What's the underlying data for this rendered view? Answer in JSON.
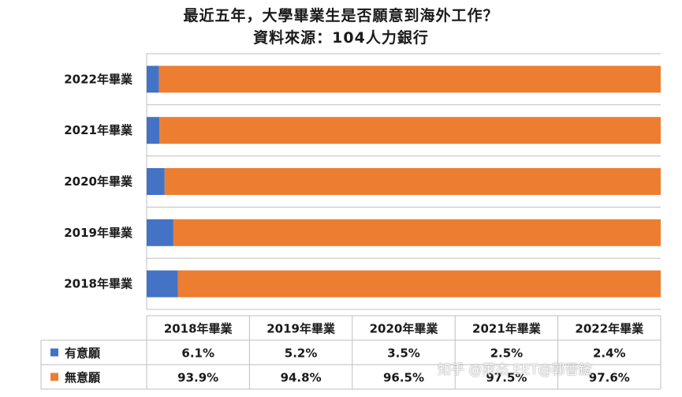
{
  "chart_data": {
    "type": "bar",
    "orientation": "horizontal",
    "stacked": true,
    "title": "最近五年，大學畢業生是否願意到海外工作？",
    "subtitle": "資料來源：104人力銀行",
    "categories": [
      "2018年畢業",
      "2019年畢業",
      "2020年畢業",
      "2021年畢業",
      "2022年畢業"
    ],
    "series": [
      {
        "name": "有意願",
        "values": [
          6.1,
          5.2,
          3.5,
          2.5,
          2.4
        ],
        "labels": [
          "6.1%",
          "5.2%",
          "3.5%",
          "2.5%",
          "2.4%"
        ],
        "color": "#4472C4"
      },
      {
        "name": "無意願",
        "values": [
          93.9,
          94.8,
          96.5,
          97.5,
          97.6
        ],
        "labels": [
          "93.9%",
          "94.8%",
          "96.5%",
          "97.5%",
          "97.6%"
        ],
        "color": "#ED7D31"
      }
    ],
    "xlim": [
      0,
      100
    ],
    "grid": true,
    "data_table": true
  },
  "watermark": "知乎 @萊杰 EET@郭晉鋐"
}
